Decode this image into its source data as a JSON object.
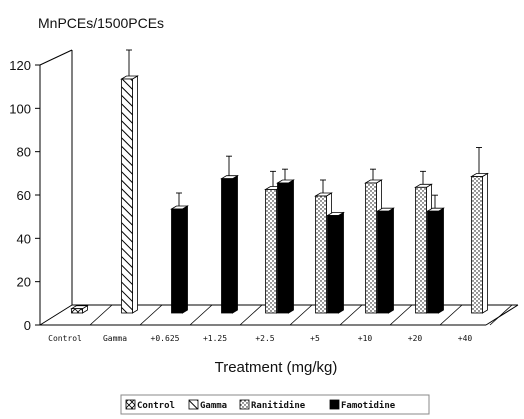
{
  "chart_data": {
    "type": "bar",
    "title": "",
    "ylabel": "MnPCEs/1500PCEs",
    "xlabel": "Treatment   (mg/kg)",
    "ylim": [
      0,
      120
    ],
    "yticks": [
      0,
      20,
      40,
      60,
      80,
      100,
      120
    ],
    "categories": [
      "Control",
      "Gamma",
      "+0.625",
      "+1.25",
      "+2.5",
      "+5",
      "+10",
      "+20",
      "+40"
    ],
    "style": "3d-bars-with-error-bars",
    "legend_position": "bottom",
    "series": [
      {
        "name": "Control",
        "pattern": "crosshatch",
        "values": [
          2,
          null,
          null,
          null,
          null,
          null,
          null,
          null,
          null
        ],
        "errors": [
          0,
          null,
          null,
          null,
          null,
          null,
          null,
          null,
          null
        ]
      },
      {
        "name": "Gamma",
        "pattern": "diagonal",
        "values": [
          null,
          108,
          null,
          null,
          null,
          null,
          null,
          null,
          null
        ],
        "errors": [
          null,
          12,
          null,
          null,
          null,
          null,
          null,
          null,
          null
        ]
      },
      {
        "name": "Ranitidine",
        "pattern": "dotted",
        "values": [
          null,
          null,
          null,
          null,
          57,
          54,
          60,
          58,
          63
        ],
        "errors": [
          null,
          null,
          null,
          null,
          7,
          6,
          5,
          6,
          12
        ]
      },
      {
        "name": "Famotidine",
        "pattern": "solid-black",
        "values": [
          null,
          null,
          48,
          62,
          60,
          45,
          47,
          47,
          null
        ],
        "errors": [
          null,
          null,
          6,
          9,
          5,
          null,
          null,
          6,
          null
        ]
      }
    ],
    "colors": {
      "bar_outline": "#000000",
      "famotidine_fill": "#000000",
      "light_fill": "#ffffff"
    }
  }
}
